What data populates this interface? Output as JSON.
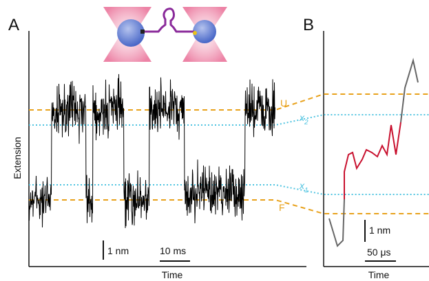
{
  "panels": [
    {
      "label": "A",
      "y_axis_label": "Extension",
      "x_axis_label": "Time",
      "level_labels": {
        "unfolded": "U",
        "folded": "F"
      },
      "intermediates": [
        {
          "symbol": "x",
          "subscript": "2"
        },
        {
          "symbol": "x",
          "subscript": "1"
        }
      ],
      "scale_bars": {
        "vertical": "1 nm",
        "horizontal": "10 ms"
      }
    },
    {
      "label": "B",
      "x_axis_label": "Time",
      "scale_bars": {
        "vertical": "1 nm",
        "horizontal": "50 μs"
      }
    }
  ]
}
